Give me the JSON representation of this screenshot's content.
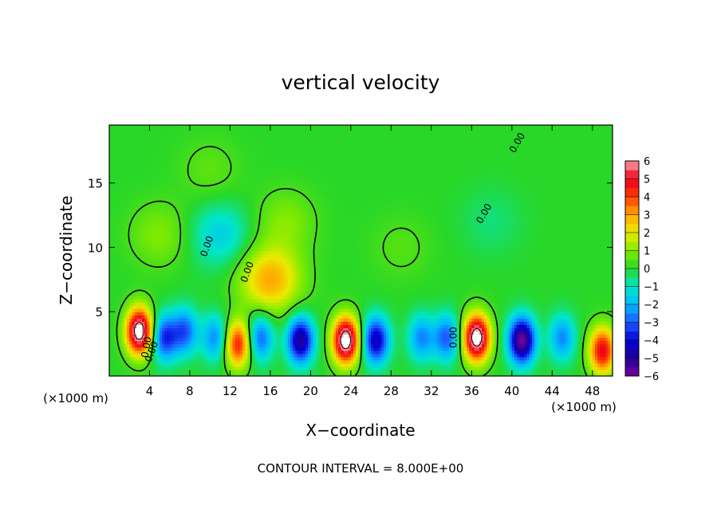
{
  "chart_data": {
    "type": "heatmap",
    "title": "vertical velocity",
    "xlabel": "X−coordinate",
    "ylabel": "Z−coordinate",
    "x_unit_left": "(×1000 m)",
    "x_unit_right": "(×1000 m)",
    "footer": "CONTOUR INTERVAL = 8.000E+00",
    "xlim": [
      0,
      50
    ],
    "ylim": [
      0,
      19.5
    ],
    "x_ticks": [
      4,
      8,
      12,
      16,
      20,
      24,
      28,
      32,
      36,
      40,
      44,
      48
    ],
    "x_tick_labels": [
      "4",
      "8",
      "12",
      "16",
      "20",
      "24",
      "28",
      "32",
      "36",
      "40",
      "44",
      "48"
    ],
    "y_ticks": [
      5,
      10,
      15
    ],
    "y_tick_labels": [
      "5",
      "10",
      "15"
    ],
    "contour_labels": [
      "0.00",
      "0.00",
      "0.00",
      "0.00",
      "0.00",
      "0.00",
      "0.00"
    ],
    "colorbar": {
      "min": -6,
      "max": 6,
      "tick_values": [
        6,
        5,
        4,
        3,
        2,
        1,
        0,
        -1,
        -2,
        -3,
        -4,
        -5,
        -6
      ],
      "tick_labels": [
        "6",
        "5",
        "4",
        "3",
        "2",
        "1",
        "0",
        "−1",
        "−2",
        "−3",
        "−4",
        "−5",
        "−6"
      ]
    },
    "features": [
      {
        "x": 3.0,
        "z": 3.5,
        "w": 7.0
      },
      {
        "x": 5.5,
        "z": 3.0,
        "w": -3.5
      },
      {
        "x": 7.5,
        "z": 3.5,
        "w": -3.0
      },
      {
        "x": 10.5,
        "z": 3.0,
        "w": -2.5
      },
      {
        "x": 12.8,
        "z": 2.5,
        "w": 4.5
      },
      {
        "x": 15.0,
        "z": 3.0,
        "w": -3.0
      },
      {
        "x": 16.0,
        "z": 7.5,
        "w": 3.0
      },
      {
        "x": 19.0,
        "z": 2.8,
        "w": -5.0
      },
      {
        "x": 23.5,
        "z": 2.8,
        "w": 7.0
      },
      {
        "x": 26.5,
        "z": 2.8,
        "w": -4.5
      },
      {
        "x": 31.0,
        "z": 3.0,
        "w": -2.5
      },
      {
        "x": 33.5,
        "z": 3.0,
        "w": -3.0
      },
      {
        "x": 36.5,
        "z": 3.0,
        "w": 7.0
      },
      {
        "x": 41.0,
        "z": 2.8,
        "w": -6.0
      },
      {
        "x": 45.0,
        "z": 3.0,
        "w": -2.5
      },
      {
        "x": 49.0,
        "z": 2.0,
        "w": 5.0
      },
      {
        "x": 11.0,
        "z": 11.0,
        "w": -1.5
      },
      {
        "x": 17.5,
        "z": 12.0,
        "w": 1.0
      },
      {
        "x": 10.0,
        "z": 16.0,
        "w": 0.6
      },
      {
        "x": 5.0,
        "z": 11.0,
        "w": 1.0
      },
      {
        "x": 29.0,
        "z": 10.0,
        "w": 0.5
      },
      {
        "x": 38.0,
        "z": 12.0,
        "w": -0.5
      }
    ]
  }
}
